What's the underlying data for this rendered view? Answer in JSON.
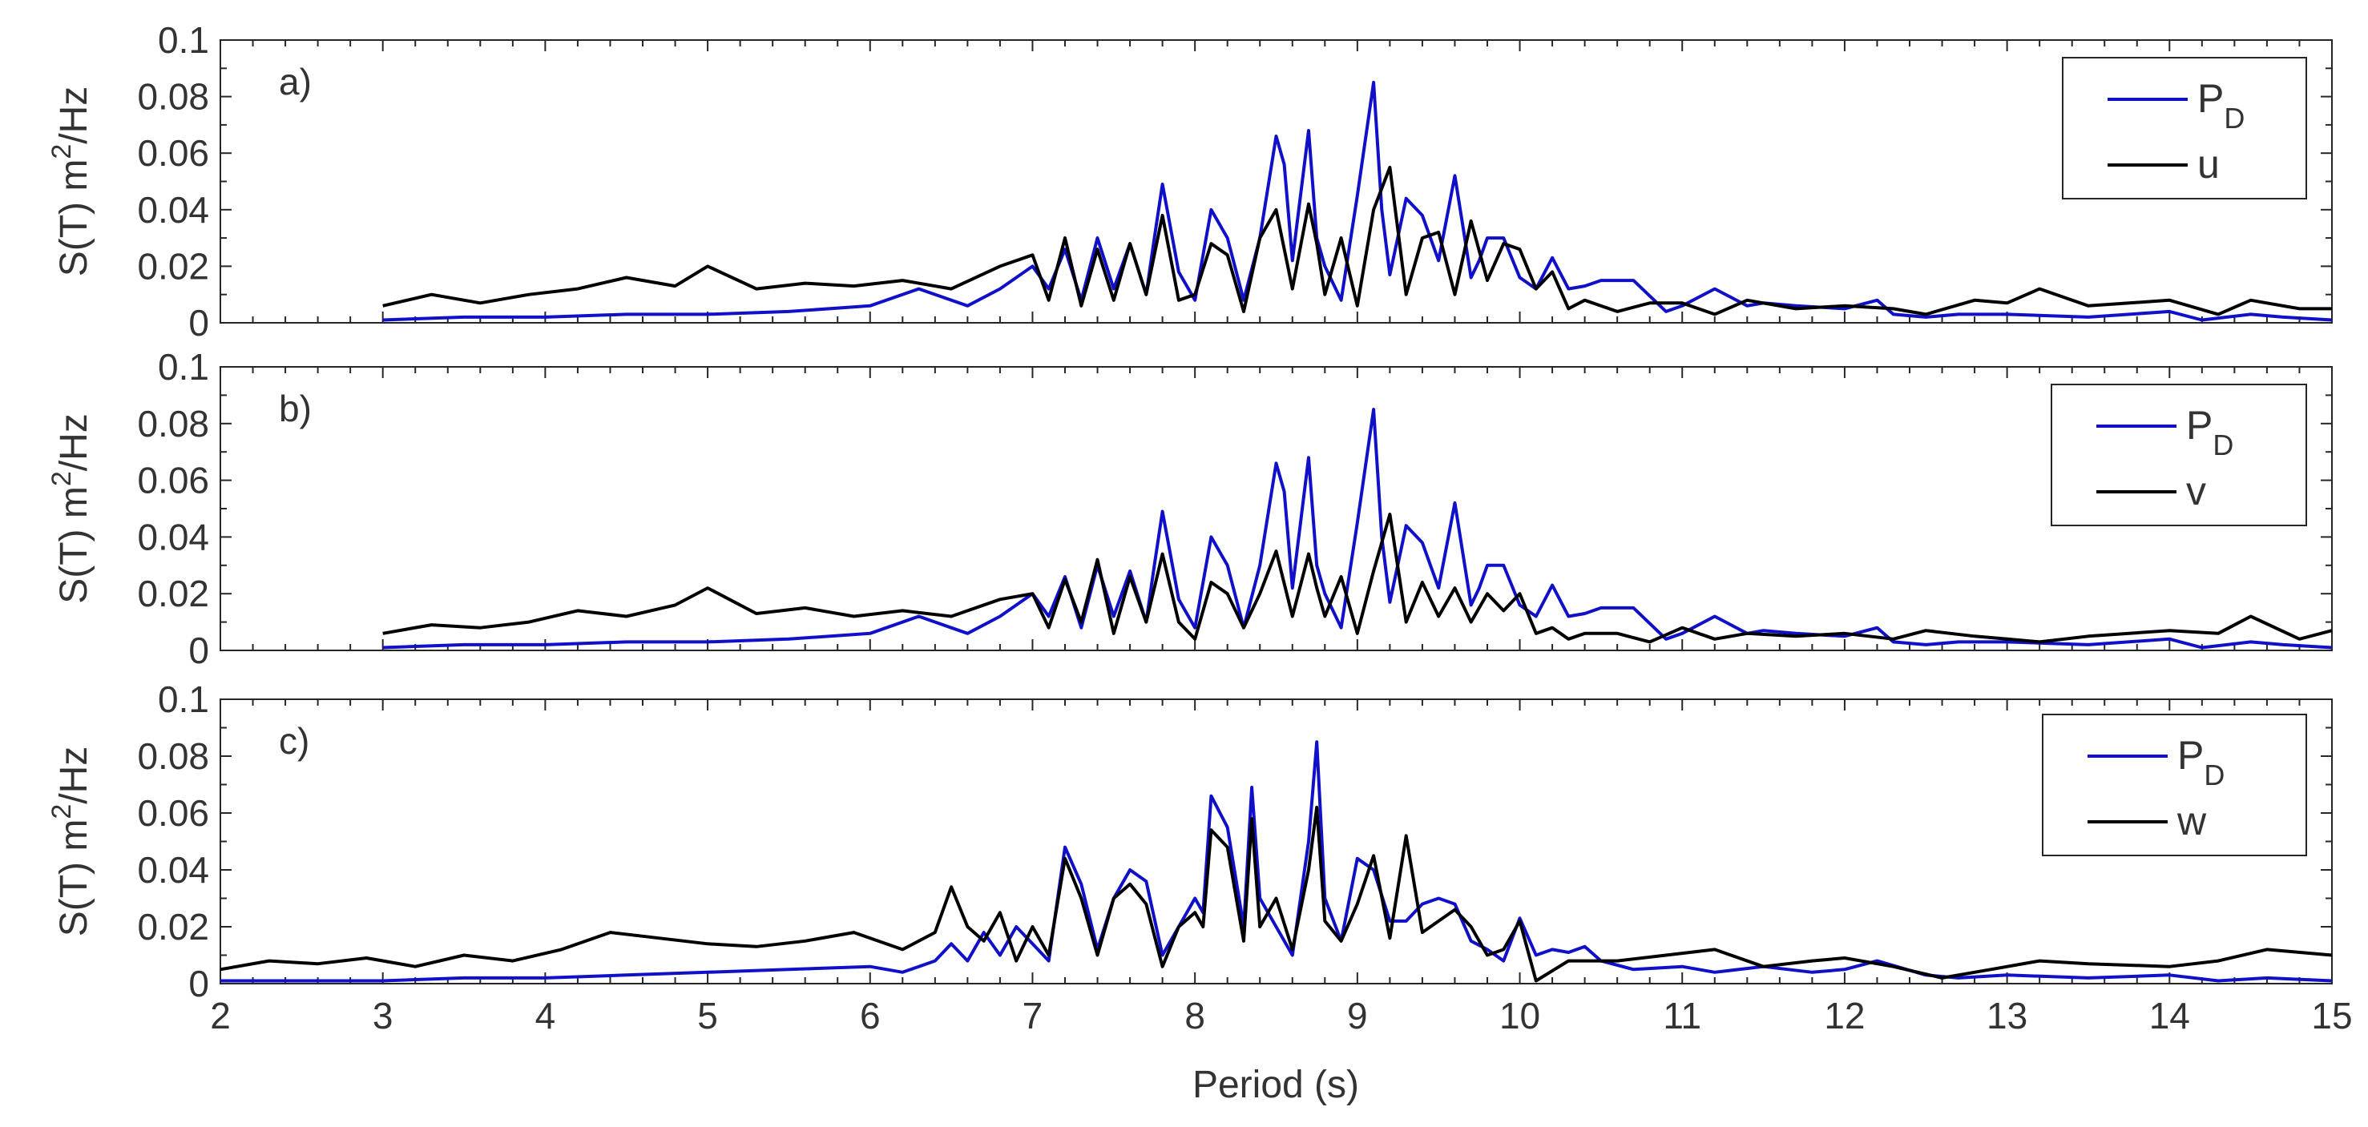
{
  "chart_data": [
    {
      "type": "line",
      "panel_label": "a)",
      "xlabel": "Period (s)",
      "ylabel": "S(T) m",
      "ylabel_sup": "2",
      "ylabel_suffix": "/Hz",
      "xlim": [
        2,
        15
      ],
      "ylim": [
        0,
        0.1
      ],
      "legend_position": "top-right",
      "series": [
        {
          "name": "P",
          "name_sub": "D",
          "color": "#1010c8",
          "x": [
            3.0,
            3.5,
            4.0,
            4.5,
            5.0,
            5.5,
            6.0,
            6.3,
            6.6,
            6.8,
            7.0,
            7.1,
            7.2,
            7.3,
            7.4,
            7.5,
            7.6,
            7.7,
            7.75,
            7.8,
            7.9,
            8.0,
            8.1,
            8.2,
            8.3,
            8.4,
            8.5,
            8.55,
            8.6,
            8.7,
            8.75,
            8.8,
            8.9,
            9.0,
            9.1,
            9.15,
            9.2,
            9.3,
            9.4,
            9.5,
            9.6,
            9.7,
            9.75,
            9.8,
            9.9,
            10.0,
            10.1,
            10.2,
            10.3,
            10.4,
            10.5,
            10.7,
            10.9,
            11.0,
            11.2,
            11.4,
            11.5,
            11.7,
            12.0,
            12.2,
            12.3,
            12.5,
            12.7,
            13.0,
            13.5,
            14.0,
            14.2,
            14.5,
            14.7,
            15.0
          ],
          "values": [
            0.001,
            0.002,
            0.002,
            0.003,
            0.003,
            0.004,
            0.006,
            0.012,
            0.006,
            0.012,
            0.02,
            0.012,
            0.026,
            0.008,
            0.03,
            0.012,
            0.028,
            0.01,
            0.03,
            0.049,
            0.018,
            0.008,
            0.04,
            0.03,
            0.008,
            0.03,
            0.066,
            0.056,
            0.022,
            0.068,
            0.03,
            0.02,
            0.008,
            0.045,
            0.085,
            0.04,
            0.017,
            0.044,
            0.038,
            0.022,
            0.052,
            0.016,
            0.022,
            0.03,
            0.03,
            0.016,
            0.012,
            0.023,
            0.012,
            0.013,
            0.015,
            0.015,
            0.004,
            0.006,
            0.012,
            0.006,
            0.007,
            0.006,
            0.005,
            0.008,
            0.003,
            0.002,
            0.003,
            0.003,
            0.002,
            0.004,
            0.001,
            0.003,
            0.002,
            0.001
          ]
        },
        {
          "name": "u",
          "color": "#000000",
          "x": [
            3.0,
            3.3,
            3.6,
            3.9,
            4.2,
            4.5,
            4.8,
            5.0,
            5.3,
            5.6,
            5.9,
            6.2,
            6.5,
            6.8,
            7.0,
            7.1,
            7.2,
            7.3,
            7.4,
            7.5,
            7.6,
            7.7,
            7.8,
            7.9,
            8.0,
            8.1,
            8.2,
            8.3,
            8.4,
            8.5,
            8.6,
            8.7,
            8.75,
            8.8,
            8.9,
            9.0,
            9.1,
            9.2,
            9.3,
            9.4,
            9.5,
            9.6,
            9.7,
            9.8,
            9.9,
            10.0,
            10.1,
            10.2,
            10.3,
            10.4,
            10.6,
            10.8,
            11.0,
            11.2,
            11.4,
            11.7,
            12.0,
            12.3,
            12.5,
            12.8,
            13.0,
            13.2,
            13.5,
            14.0,
            14.3,
            14.5,
            14.8,
            15.0
          ],
          "values": [
            0.006,
            0.01,
            0.007,
            0.01,
            0.012,
            0.016,
            0.013,
            0.02,
            0.012,
            0.014,
            0.013,
            0.015,
            0.012,
            0.02,
            0.024,
            0.008,
            0.03,
            0.006,
            0.026,
            0.008,
            0.028,
            0.01,
            0.038,
            0.008,
            0.01,
            0.028,
            0.024,
            0.004,
            0.03,
            0.04,
            0.012,
            0.042,
            0.028,
            0.01,
            0.03,
            0.006,
            0.04,
            0.055,
            0.01,
            0.03,
            0.032,
            0.01,
            0.036,
            0.015,
            0.028,
            0.026,
            0.012,
            0.018,
            0.005,
            0.008,
            0.004,
            0.007,
            0.007,
            0.003,
            0.008,
            0.005,
            0.006,
            0.005,
            0.003,
            0.008,
            0.007,
            0.012,
            0.006,
            0.008,
            0.003,
            0.008,
            0.005,
            0.005
          ]
        }
      ]
    },
    {
      "type": "line",
      "panel_label": "b)",
      "xlabel": "Period (s)",
      "ylabel": "S(T) m",
      "ylabel_sup": "2",
      "ylabel_suffix": "/Hz",
      "xlim": [
        2,
        15
      ],
      "ylim": [
        0,
        0.1
      ],
      "legend_position": "top-right",
      "series": [
        {
          "name": "P",
          "name_sub": "D",
          "color": "#1010c8",
          "x": [
            3.0,
            3.5,
            4.0,
            4.5,
            5.0,
            5.5,
            6.0,
            6.3,
            6.6,
            6.8,
            7.0,
            7.1,
            7.2,
            7.3,
            7.4,
            7.5,
            7.6,
            7.7,
            7.75,
            7.8,
            7.9,
            8.0,
            8.1,
            8.2,
            8.3,
            8.4,
            8.5,
            8.55,
            8.6,
            8.7,
            8.75,
            8.8,
            8.9,
            9.0,
            9.1,
            9.15,
            9.2,
            9.3,
            9.4,
            9.5,
            9.6,
            9.7,
            9.75,
            9.8,
            9.9,
            10.0,
            10.1,
            10.2,
            10.3,
            10.4,
            10.5,
            10.7,
            10.9,
            11.0,
            11.2,
            11.4,
            11.5,
            11.7,
            12.0,
            12.2,
            12.3,
            12.5,
            12.7,
            13.0,
            13.5,
            14.0,
            14.2,
            14.5,
            14.7,
            15.0
          ],
          "values": [
            0.001,
            0.002,
            0.002,
            0.003,
            0.003,
            0.004,
            0.006,
            0.012,
            0.006,
            0.012,
            0.02,
            0.012,
            0.026,
            0.008,
            0.03,
            0.012,
            0.028,
            0.01,
            0.03,
            0.049,
            0.018,
            0.008,
            0.04,
            0.03,
            0.008,
            0.03,
            0.066,
            0.056,
            0.022,
            0.068,
            0.03,
            0.02,
            0.008,
            0.045,
            0.085,
            0.04,
            0.017,
            0.044,
            0.038,
            0.022,
            0.052,
            0.016,
            0.022,
            0.03,
            0.03,
            0.016,
            0.012,
            0.023,
            0.012,
            0.013,
            0.015,
            0.015,
            0.004,
            0.006,
            0.012,
            0.006,
            0.007,
            0.006,
            0.005,
            0.008,
            0.003,
            0.002,
            0.003,
            0.003,
            0.002,
            0.004,
            0.001,
            0.003,
            0.002,
            0.001
          ]
        },
        {
          "name": "v",
          "color": "#000000",
          "x": [
            3.0,
            3.3,
            3.6,
            3.9,
            4.2,
            4.5,
            4.8,
            5.0,
            5.3,
            5.6,
            5.9,
            6.2,
            6.5,
            6.8,
            7.0,
            7.1,
            7.2,
            7.3,
            7.4,
            7.5,
            7.6,
            7.7,
            7.8,
            7.9,
            8.0,
            8.1,
            8.2,
            8.3,
            8.4,
            8.5,
            8.6,
            8.7,
            8.75,
            8.8,
            8.9,
            9.0,
            9.1,
            9.2,
            9.3,
            9.4,
            9.5,
            9.6,
            9.7,
            9.8,
            9.9,
            10.0,
            10.1,
            10.2,
            10.3,
            10.4,
            10.6,
            10.8,
            11.0,
            11.2,
            11.4,
            11.7,
            12.0,
            12.3,
            12.5,
            12.8,
            13.0,
            13.2,
            13.5,
            14.0,
            14.3,
            14.5,
            14.8,
            15.0
          ],
          "values": [
            0.006,
            0.009,
            0.008,
            0.01,
            0.014,
            0.012,
            0.016,
            0.022,
            0.013,
            0.015,
            0.012,
            0.014,
            0.012,
            0.018,
            0.02,
            0.008,
            0.025,
            0.01,
            0.032,
            0.006,
            0.026,
            0.01,
            0.034,
            0.01,
            0.004,
            0.024,
            0.02,
            0.008,
            0.02,
            0.035,
            0.012,
            0.034,
            0.022,
            0.012,
            0.026,
            0.006,
            0.028,
            0.048,
            0.01,
            0.024,
            0.012,
            0.022,
            0.01,
            0.02,
            0.014,
            0.02,
            0.006,
            0.008,
            0.004,
            0.006,
            0.006,
            0.003,
            0.008,
            0.004,
            0.006,
            0.005,
            0.006,
            0.004,
            0.007,
            0.005,
            0.004,
            0.003,
            0.005,
            0.007,
            0.006,
            0.012,
            0.004,
            0.007
          ]
        }
      ]
    },
    {
      "type": "line",
      "panel_label": "c)",
      "xlabel": "Period (s)",
      "ylabel": "S(T) m",
      "ylabel_sup": "2",
      "ylabel_suffix": "/Hz",
      "xlim": [
        2,
        15
      ],
      "ylim": [
        0,
        0.1
      ],
      "xticks": [
        2,
        3,
        4,
        5,
        6,
        7,
        8,
        9,
        10,
        11,
        12,
        13,
        14,
        15
      ],
      "legend_position": "top-right",
      "series": [
        {
          "name": "P",
          "name_sub": "D",
          "color": "#1010c8",
          "x": [
            2.0,
            2.5,
            3.0,
            3.5,
            4.0,
            4.5,
            5.0,
            5.5,
            6.0,
            6.2,
            6.4,
            6.5,
            6.6,
            6.7,
            6.8,
            6.9,
            7.0,
            7.1,
            7.2,
            7.3,
            7.4,
            7.5,
            7.6,
            7.7,
            7.8,
            7.9,
            8.0,
            8.05,
            8.1,
            8.2,
            8.3,
            8.35,
            8.4,
            8.5,
            8.6,
            8.7,
            8.75,
            8.8,
            8.9,
            9.0,
            9.1,
            9.2,
            9.3,
            9.4,
            9.5,
            9.6,
            9.7,
            9.8,
            9.9,
            10.0,
            10.1,
            10.2,
            10.3,
            10.4,
            10.5,
            10.7,
            11.0,
            11.2,
            11.5,
            11.8,
            12.0,
            12.2,
            12.5,
            12.7,
            13.0,
            13.5,
            14.0,
            14.3,
            14.6,
            15.0
          ],
          "values": [
            0.001,
            0.001,
            0.001,
            0.002,
            0.002,
            0.003,
            0.004,
            0.005,
            0.006,
            0.004,
            0.008,
            0.014,
            0.008,
            0.018,
            0.01,
            0.02,
            0.014,
            0.008,
            0.048,
            0.035,
            0.012,
            0.03,
            0.04,
            0.036,
            0.01,
            0.02,
            0.03,
            0.025,
            0.066,
            0.055,
            0.02,
            0.069,
            0.03,
            0.02,
            0.01,
            0.05,
            0.085,
            0.03,
            0.015,
            0.044,
            0.04,
            0.022,
            0.022,
            0.028,
            0.03,
            0.028,
            0.015,
            0.012,
            0.008,
            0.023,
            0.01,
            0.012,
            0.011,
            0.013,
            0.008,
            0.005,
            0.006,
            0.004,
            0.006,
            0.004,
            0.005,
            0.008,
            0.003,
            0.002,
            0.003,
            0.002,
            0.003,
            0.001,
            0.002,
            0.001
          ]
        },
        {
          "name": "w",
          "color": "#000000",
          "x": [
            2.0,
            2.3,
            2.6,
            2.9,
            3.2,
            3.5,
            3.8,
            4.1,
            4.4,
            4.7,
            5.0,
            5.3,
            5.6,
            5.9,
            6.2,
            6.4,
            6.5,
            6.6,
            6.7,
            6.8,
            6.9,
            7.0,
            7.1,
            7.2,
            7.3,
            7.4,
            7.5,
            7.6,
            7.7,
            7.8,
            7.9,
            8.0,
            8.05,
            8.1,
            8.2,
            8.3,
            8.35,
            8.4,
            8.5,
            8.6,
            8.7,
            8.75,
            8.8,
            8.9,
            9.0,
            9.1,
            9.2,
            9.3,
            9.4,
            9.5,
            9.6,
            9.7,
            9.8,
            9.9,
            10.0,
            10.1,
            10.3,
            10.6,
            10.9,
            11.2,
            11.5,
            11.8,
            12.0,
            12.3,
            12.6,
            12.9,
            13.2,
            13.5,
            14.0,
            14.3,
            14.6,
            15.0
          ],
          "values": [
            0.005,
            0.008,
            0.007,
            0.009,
            0.006,
            0.01,
            0.008,
            0.012,
            0.018,
            0.016,
            0.014,
            0.013,
            0.015,
            0.018,
            0.012,
            0.018,
            0.034,
            0.02,
            0.015,
            0.025,
            0.008,
            0.02,
            0.01,
            0.044,
            0.03,
            0.01,
            0.03,
            0.035,
            0.028,
            0.006,
            0.02,
            0.025,
            0.02,
            0.054,
            0.048,
            0.015,
            0.058,
            0.02,
            0.03,
            0.012,
            0.04,
            0.062,
            0.022,
            0.015,
            0.028,
            0.045,
            0.016,
            0.052,
            0.018,
            0.022,
            0.026,
            0.02,
            0.01,
            0.012,
            0.022,
            0.001,
            0.008,
            0.008,
            0.01,
            0.012,
            0.006,
            0.008,
            0.009,
            0.006,
            0.002,
            0.005,
            0.008,
            0.007,
            0.006,
            0.008,
            0.012,
            0.01
          ]
        }
      ]
    }
  ]
}
